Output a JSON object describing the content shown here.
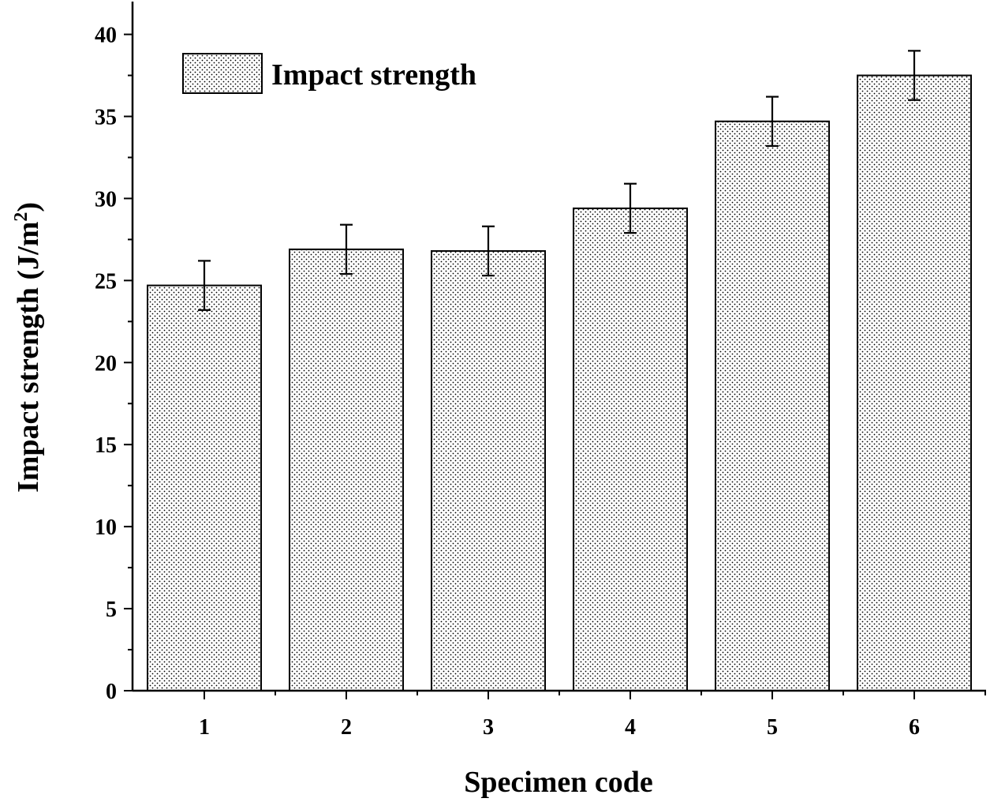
{
  "chart_data": {
    "type": "bar",
    "title": "",
    "xlabel": "Specimen code",
    "ylabel_main": "Impact strength (J/m",
    "ylabel_sup": "2",
    "ylabel_close": ")",
    "categories": [
      "1",
      "2",
      "3",
      "4",
      "5",
      "6"
    ],
    "series": [
      {
        "name": "Impact strength",
        "values": [
          24.7,
          26.9,
          26.8,
          29.4,
          34.7,
          37.5
        ],
        "errors": [
          1.5,
          1.5,
          1.5,
          1.5,
          1.5,
          1.5
        ]
      }
    ],
    "ylim": [
      0,
      42
    ],
    "yticks": [
      "0",
      "5",
      "10",
      "15",
      "20",
      "25",
      "30",
      "35",
      "40"
    ],
    "legend": {
      "label": "Impact strength",
      "position": "top-left"
    },
    "style": {
      "bar_fill": "#ffffff",
      "pattern_color": "#000000",
      "axis_color": "#000000"
    }
  }
}
